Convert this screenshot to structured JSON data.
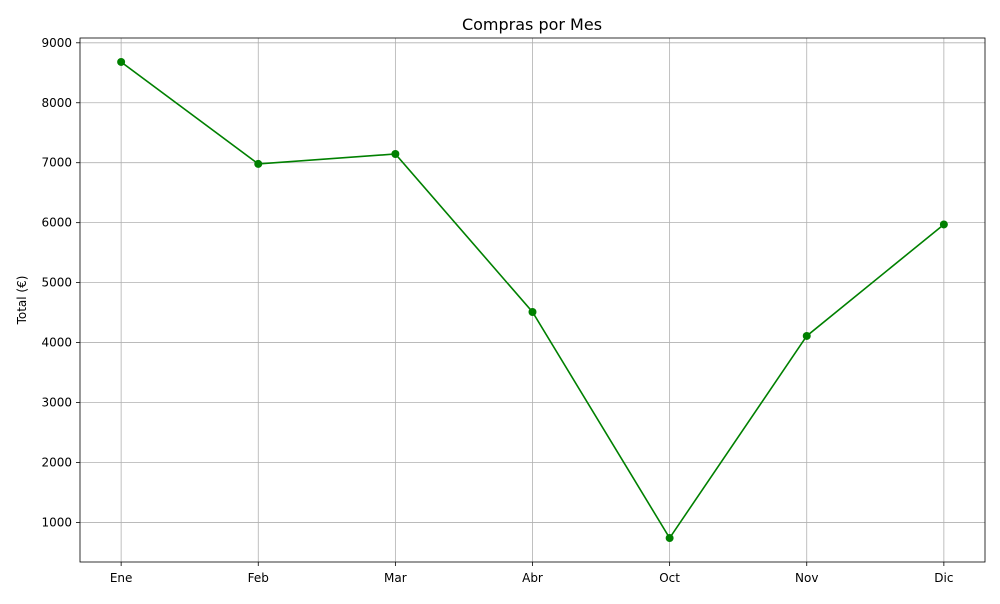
{
  "chart_data": {
    "type": "line",
    "title": "Compras por Mes",
    "xlabel": "",
    "ylabel": "Total (€)",
    "categories": [
      "Ene",
      "Feb",
      "Mar",
      "Abr",
      "Oct",
      "Nov",
      "Dic"
    ],
    "series": [
      {
        "values": [
          8680,
          6980,
          7145,
          4510,
          740,
          4110,
          5970
        ],
        "color": "#008000"
      }
    ],
    "ylim": [
      340,
      9080
    ],
    "yticks": [
      1000,
      2000,
      3000,
      4000,
      5000,
      6000,
      7000,
      8000,
      9000
    ],
    "grid": true,
    "grid_color": "#b0b0b0"
  }
}
